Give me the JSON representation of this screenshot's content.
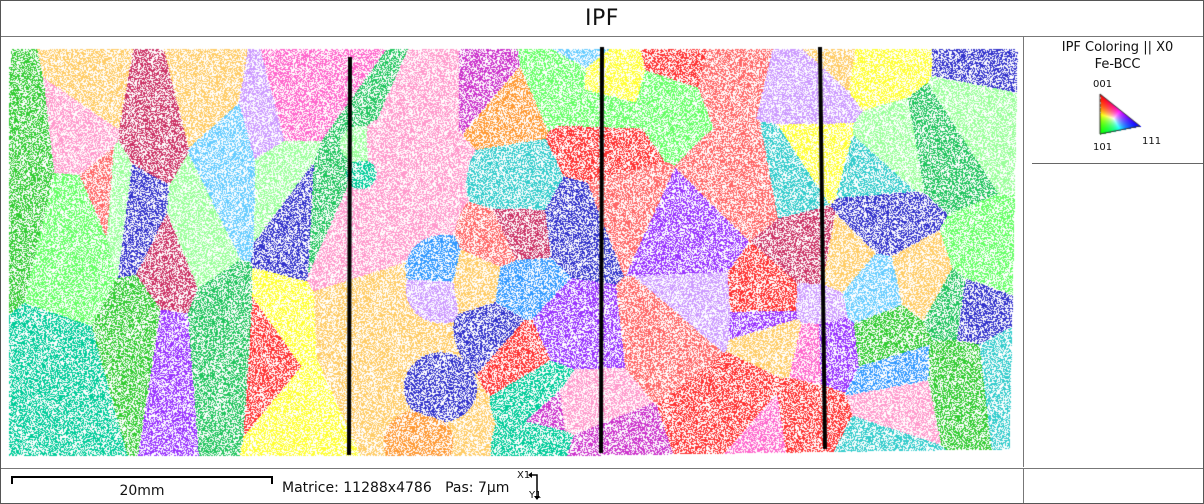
{
  "header": {
    "title": "IPF"
  },
  "legend": {
    "coloring": "IPF Coloring || X0",
    "phase": "Fe-BCC",
    "corners": {
      "top": "001",
      "bottom_left": "101",
      "bottom_right": "111"
    },
    "colors": {
      "001": "#ff0000",
      "101": "#00ff00",
      "111": "#0000ff"
    }
  },
  "footer": {
    "scale_label": "20mm",
    "matrice": "Matrice: 11288x4786",
    "pas": "Pas: 7µm",
    "axis_x": "X1",
    "axis_y": "Y1"
  },
  "map": {
    "grain_palette": [
      "#22c55e",
      "#ff9933",
      "#ffff33",
      "#ff66cc",
      "#cc33cc",
      "#33cc33",
      "#ff3333",
      "#9933ff",
      "#3333cc",
      "#33cccc",
      "#99ff99",
      "#cc99ff",
      "#66ccff",
      "#ffcc66",
      "#00cc99",
      "#ff99cc",
      "#cc3366",
      "#66ff66",
      "#ff6666",
      "#3399ff"
    ],
    "stitch_lines": 3
  }
}
